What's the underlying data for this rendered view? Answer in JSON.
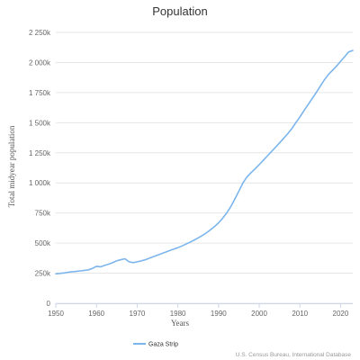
{
  "chart_data": {
    "type": "line",
    "title": "Population",
    "xlabel": "Years",
    "ylabel": "Total midyear population",
    "xlim": [
      1950,
      2023
    ],
    "ylim": [
      0,
      2250000
    ],
    "x_ticks": [
      1950,
      1960,
      1970,
      1980,
      1990,
      2000,
      2010,
      2020
    ],
    "y_ticks": [
      0,
      250000,
      500000,
      750000,
      1000000,
      1250000,
      1500000,
      1750000,
      2000000,
      2250000
    ],
    "y_tick_labels": [
      "0",
      "250k",
      "500k",
      "750k",
      "1 000k",
      "1 250k",
      "1 500k",
      "1 750k",
      "2 000k",
      "2 250k"
    ],
    "grid": "horizontal",
    "legend_position": "bottom-left",
    "series": [
      {
        "name": "Gaza Strip",
        "color": "#7cb5ec",
        "points": [
          [
            1950,
            245000
          ],
          [
            1951,
            248000
          ],
          [
            1952,
            252000
          ],
          [
            1953,
            258000
          ],
          [
            1954,
            262000
          ],
          [
            1955,
            265000
          ],
          [
            1956,
            269000
          ],
          [
            1957,
            273000
          ],
          [
            1958,
            278000
          ],
          [
            1959,
            290000
          ],
          [
            1960,
            307000
          ],
          [
            1961,
            303000
          ],
          [
            1962,
            315000
          ],
          [
            1963,
            325000
          ],
          [
            1964,
            338000
          ],
          [
            1965,
            353000
          ],
          [
            1966,
            362000
          ],
          [
            1967,
            370000
          ],
          [
            1968,
            345000
          ],
          [
            1969,
            338000
          ],
          [
            1970,
            345000
          ],
          [
            1971,
            352000
          ],
          [
            1972,
            362000
          ],
          [
            1973,
            375000
          ],
          [
            1974,
            388000
          ],
          [
            1975,
            400000
          ],
          [
            1976,
            413000
          ],
          [
            1977,
            425000
          ],
          [
            1978,
            438000
          ],
          [
            1979,
            450000
          ],
          [
            1980,
            462000
          ],
          [
            1981,
            476000
          ],
          [
            1982,
            492000
          ],
          [
            1983,
            508000
          ],
          [
            1984,
            525000
          ],
          [
            1985,
            543000
          ],
          [
            1986,
            563000
          ],
          [
            1987,
            585000
          ],
          [
            1988,
            610000
          ],
          [
            1989,
            637000
          ],
          [
            1990,
            668000
          ],
          [
            1991,
            706000
          ],
          [
            1992,
            750000
          ],
          [
            1993,
            802000
          ],
          [
            1994,
            865000
          ],
          [
            1995,
            932000
          ],
          [
            1996,
            1000000
          ],
          [
            1997,
            1050000
          ],
          [
            1998,
            1085000
          ],
          [
            1999,
            1118000
          ],
          [
            2000,
            1152000
          ],
          [
            2001,
            1188000
          ],
          [
            2002,
            1224000
          ],
          [
            2003,
            1260000
          ],
          [
            2004,
            1296000
          ],
          [
            2005,
            1333000
          ],
          [
            2006,
            1370000
          ],
          [
            2007,
            1408000
          ],
          [
            2008,
            1450000
          ],
          [
            2009,
            1500000
          ],
          [
            2010,
            1548000
          ],
          [
            2011,
            1600000
          ],
          [
            2012,
            1650000
          ],
          [
            2013,
            1700000
          ],
          [
            2014,
            1750000
          ],
          [
            2015,
            1803000
          ],
          [
            2016,
            1855000
          ],
          [
            2017,
            1900000
          ],
          [
            2018,
            1935000
          ],
          [
            2019,
            1970000
          ],
          [
            2020,
            2010000
          ],
          [
            2021,
            2048000
          ],
          [
            2022,
            2088000
          ],
          [
            2023,
            2100000
          ]
        ]
      }
    ],
    "credits": "U.S. Census Bureau, International Database"
  }
}
